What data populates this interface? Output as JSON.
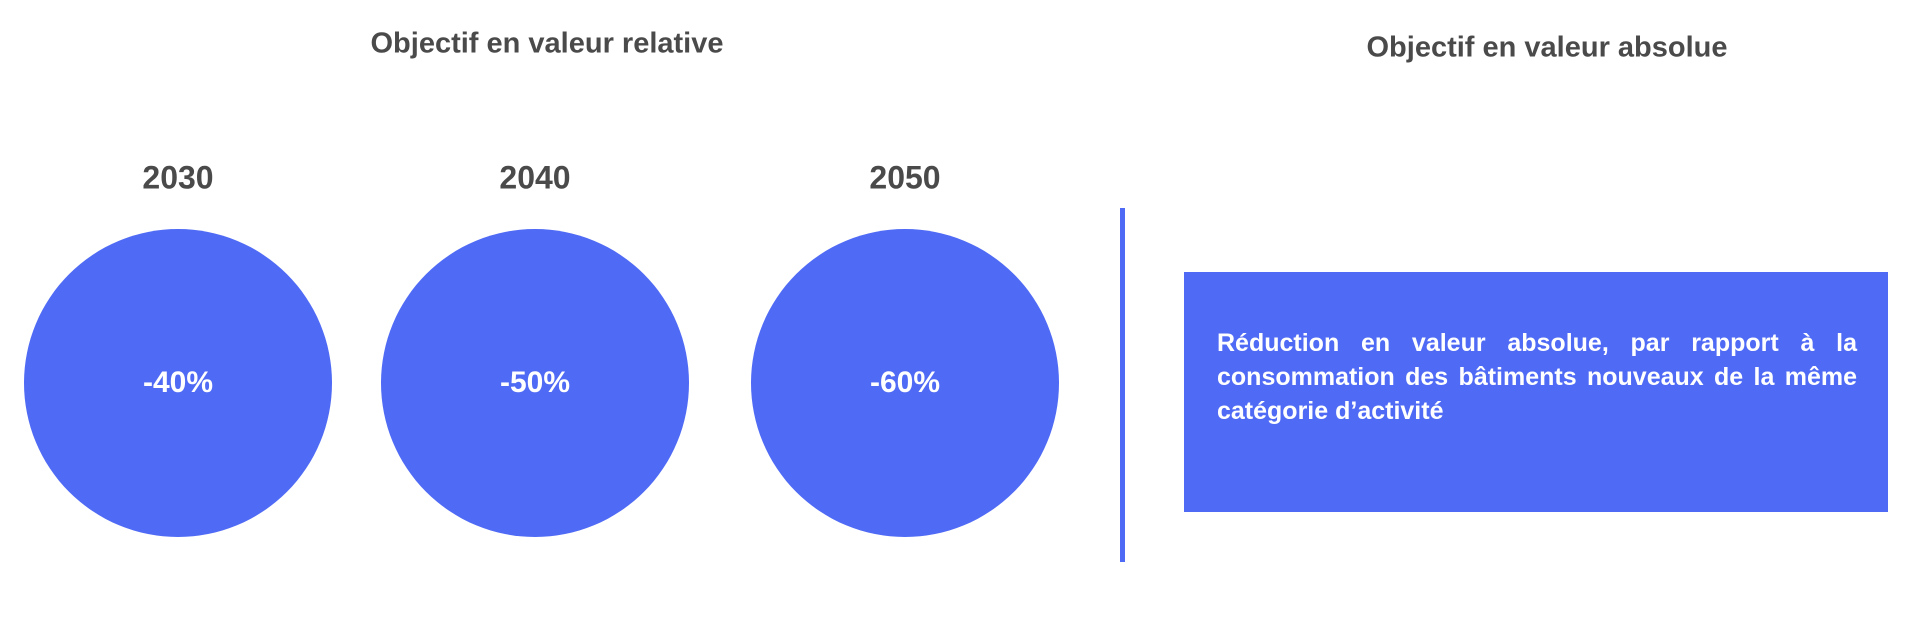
{
  "left": {
    "title": "Objectif en valeur relative",
    "items": [
      {
        "year": "2030",
        "value": "-40%"
      },
      {
        "year": "2040",
        "value": "-50%"
      },
      {
        "year": "2050",
        "value": "-60%"
      }
    ]
  },
  "right": {
    "title": "Objectif en valeur absolue",
    "text": "Réduction en valeur absolue, par rapport à la consommation des bâtiments nouveaux de la même catégorie d’activité"
  }
}
